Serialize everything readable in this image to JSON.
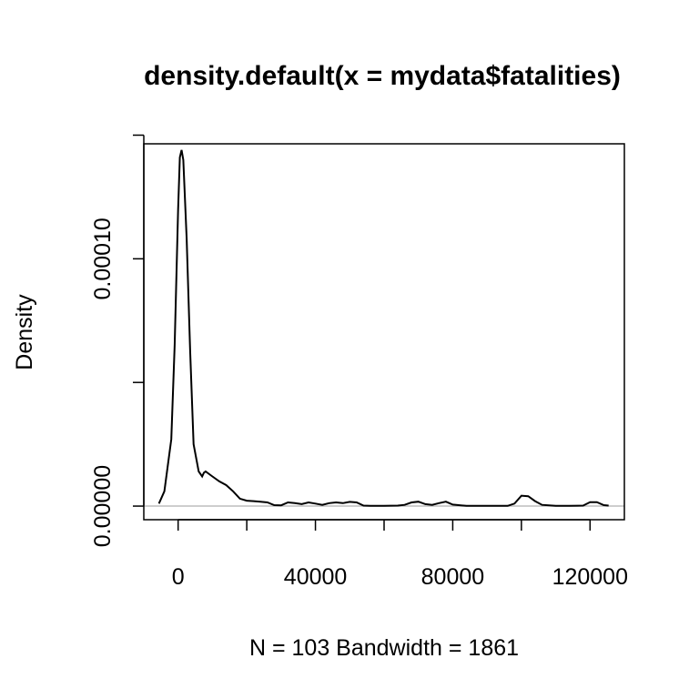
{
  "chart_data": {
    "type": "line",
    "title": "density.default(x = mydata$fatalities)",
    "xlabel": "N = 103   Bandwidth = 1861",
    "ylabel": "Density",
    "xlim": [
      -10000,
      130000
    ],
    "ylim": [
      -5.5e-06,
      0.0001465
    ],
    "xticks": [
      0,
      20000,
      40000,
      60000,
      80000,
      100000,
      120000
    ],
    "xtick_labels": [
      "0",
      "",
      "40000",
      "",
      "80000",
      "",
      "120000"
    ],
    "yticks": [
      0,
      5e-05,
      0.0001,
      0.00015
    ],
    "ytick_labels": [
      "0.00000",
      "",
      "0.00010",
      ""
    ],
    "baseline": {
      "y": 0,
      "color": "#bebebe"
    },
    "grid": false,
    "series": [
      {
        "color": "#000000",
        "x": [
          -5600,
          -4000,
          -2000,
          -1000,
          0,
          500,
          1000,
          1500,
          2500,
          3500,
          4500,
          6000,
          7000,
          7500,
          8000,
          10000,
          12000,
          14000,
          16000,
          18000,
          20000,
          22000,
          24000,
          26000,
          28000,
          30000,
          32000,
          34000,
          36000,
          38000,
          40000,
          42000,
          44000,
          46000,
          48000,
          50000,
          52000,
          54000,
          56000,
          60000,
          64000,
          66000,
          68000,
          70000,
          72000,
          74000,
          76000,
          78000,
          80000,
          84000,
          88000,
          92000,
          96000,
          98000,
          100000,
          102000,
          104000,
          106000,
          110000,
          114000,
          118000,
          120000,
          122000,
          124000,
          125400
        ],
        "y": [
          1e-06,
          6e-06,
          2.7e-05,
          6.5e-05,
          0.00012,
          0.000141,
          0.000144,
          0.00014,
          0.000108,
          6.3e-05,
          2.5e-05,
          1.4e-05,
          1.2e-05,
          1.35e-05,
          1.4e-05,
          1.2e-05,
          1e-05,
          8.5e-06,
          6e-06,
          3e-06,
          2.2e-06,
          2e-06,
          1.8e-06,
          1.5e-06,
          4e-07,
          3e-07,
          1.5e-06,
          1.2e-06,
          8e-07,
          1.5e-06,
          1e-06,
          5e-07,
          1.2e-06,
          1.5e-06,
          1.2e-06,
          1.7e-06,
          1.5e-06,
          2e-07,
          1e-07,
          1e-07,
          2e-07,
          5e-07,
          1.5e-06,
          1.8e-06,
          8e-07,
          5e-07,
          1.2e-06,
          1.8e-06,
          6e-07,
          1e-07,
          1e-07,
          1e-07,
          1e-07,
          1e-06,
          4.2e-06,
          4e-06,
          2e-06,
          5e-07,
          1e-07,
          1e-07,
          2e-07,
          1.6e-06,
          1.6e-06,
          4e-07,
          2e-07
        ]
      }
    ]
  }
}
